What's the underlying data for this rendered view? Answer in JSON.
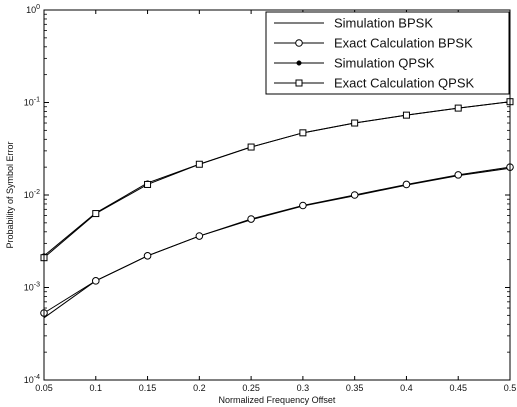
{
  "chart_data": {
    "type": "line",
    "title": "",
    "xlabel": "Normalized Frequency Offset",
    "ylabel": "Probability of Symbol Error",
    "xlim": [
      0.05,
      0.5
    ],
    "ylim": [
      0.0001,
      1
    ],
    "yscale": "log",
    "grid": false,
    "legend_position": "top-right",
    "x_ticks": [
      "0.05",
      "0.1",
      "0.15",
      "0.2",
      "0.25",
      "0.3",
      "0.35",
      "0.4",
      "0.45",
      "0.5"
    ],
    "x": [
      0.05,
      0.1,
      0.15,
      0.2,
      0.25,
      0.3,
      0.35,
      0.4,
      0.45,
      0.5
    ],
    "series": [
      {
        "name": "Simulation BPSK",
        "marker": "none",
        "values": [
          0.00047,
          0.00118,
          0.0022,
          0.0036,
          0.0054,
          0.0076,
          0.0098,
          0.0128,
          0.0162,
          0.0195
        ]
      },
      {
        "name": "Exact Calculation BPSK",
        "marker": "circle",
        "values": [
          0.00053,
          0.00118,
          0.0022,
          0.0036,
          0.0055,
          0.0077,
          0.01,
          0.013,
          0.0165,
          0.02
        ]
      },
      {
        "name": "Simulation QPSK",
        "marker": "dot",
        "values": [
          0.0022,
          0.0064,
          0.0135,
          0.0215,
          0.033,
          0.047,
          0.06,
          0.073,
          0.087,
          0.102
        ]
      },
      {
        "name": "Exact Calculation QPSK",
        "marker": "square",
        "values": [
          0.0021,
          0.0063,
          0.013,
          0.0215,
          0.033,
          0.047,
          0.06,
          0.073,
          0.087,
          0.102
        ]
      }
    ]
  }
}
